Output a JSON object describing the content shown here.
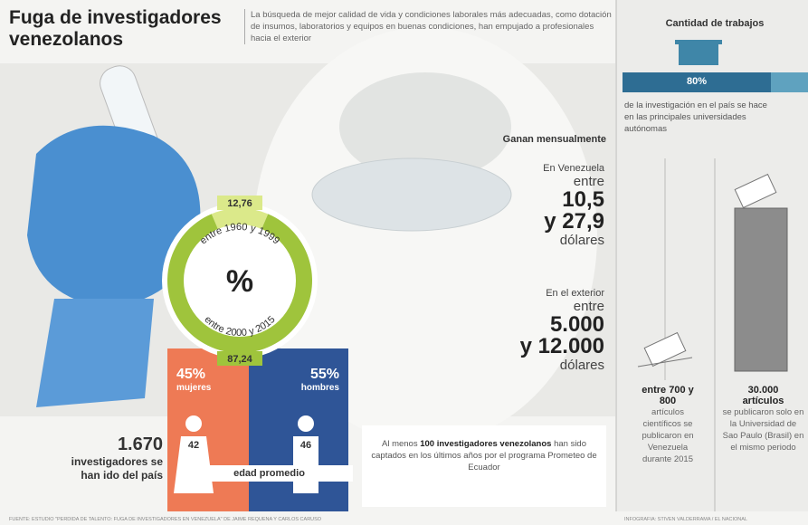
{
  "header": {
    "title": "Fuga de investigadores venezolanos",
    "intro": "La búsqueda de mejor calidad de vida y condiciones laborales más adecuadas, como dotación de insumos, laboratorios y equipos en buenas condiciones, han empujado a profesionales hacia el exterior"
  },
  "donut": {
    "center": "%",
    "top_label": "entre 1960 y 1999",
    "bottom_label": "entre 2000 y 2015",
    "segments": [
      {
        "value": 12.76,
        "label": "12,76",
        "color": "#dbe98a"
      },
      {
        "value": 87.24,
        "label": "87,24",
        "color": "#9fc43c"
      }
    ]
  },
  "gender": [
    {
      "value": 45,
      "label": "45%",
      "name": "mujeres",
      "age": "42",
      "color": "#ee7a55"
    },
    {
      "value": 55,
      "label": "55%",
      "name": "hombres",
      "age": "46",
      "color": "#2f5597"
    }
  ],
  "age_caption": "edad promedio",
  "emigrated": {
    "number": "1.670",
    "text": "investigadores se han ido del país"
  },
  "prometeo": {
    "pre": "Al menos ",
    "bold": "100 investigadores venezolanos",
    "post": " han sido captados en los últimos años por el programa Prometeo de Ecuador"
  },
  "salary": {
    "title": "Ganan mensualmente",
    "venezuela": {
      "place": "En Venezuela",
      "between": "entre",
      "low": "10,5",
      "high": "y 27,9",
      "unit": "dólares"
    },
    "abroad": {
      "place": "En el exterior",
      "between": "entre",
      "low": "5.000",
      "high": "y 12.000",
      "unit": "dólares"
    }
  },
  "jobs": {
    "title": "Cantidad de trabajos",
    "share": {
      "value": 80,
      "label": "80%"
    },
    "share_text": "de la investigación en el país se hace en las principales universidades autónomas",
    "venezuela": {
      "amount": "entre 700 y 800",
      "unit": "artículos",
      "text": "científicos se publicaron en Venezuela durante 2015"
    },
    "sao_paulo": {
      "amount": "30.000",
      "unit": "artículos",
      "text": "se publicaron solo en la Universidad de Sao Paulo (Brasil) en el mismo periodo"
    }
  },
  "footer": {
    "source": "FUENTE: ESTUDIO \"PÉRDIDA DE TALENTO: FUGA DE INVESTIGADORES EN VENEZUELA\" DE JAIME REQUENA Y CARLOS CARUSO",
    "credit": "INFOGRAFÍA: STIVEN VALDERRAMA / EL NACIONAL"
  }
}
